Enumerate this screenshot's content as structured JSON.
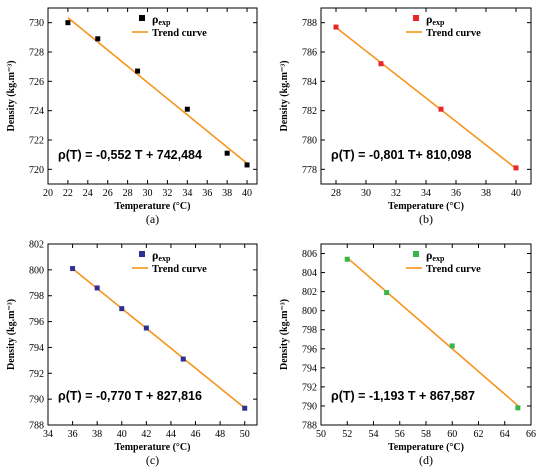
{
  "chart_data": [
    {
      "type": "scatter",
      "panel_label": "(a)",
      "xlabel": "Temperature (°C)",
      "ylabel": "Density (kg.m⁻³)",
      "xlim": [
        20,
        41
      ],
      "ylim": [
        719,
        731
      ],
      "xticks": [
        20,
        22,
        24,
        26,
        28,
        30,
        32,
        34,
        36,
        38,
        40
      ],
      "yticks": [
        720,
        722,
        724,
        726,
        728,
        730
      ],
      "marker_color": "#000000",
      "trend_color": "#f7941d",
      "series": [
        {
          "name": "ρexp",
          "x": [
            22,
            25,
            29,
            34,
            38,
            40
          ],
          "y": [
            730.0,
            728.9,
            726.7,
            724.1,
            721.1,
            720.3
          ]
        }
      ],
      "trend": {
        "name": "Trend curve",
        "slope": -0.552,
        "intercept": 742.484,
        "x_range": [
          22,
          40
        ]
      },
      "equation": "ρ(T) = -0,552 T + 742,484",
      "legend": "top-right"
    },
    {
      "type": "scatter",
      "panel_label": "(b)",
      "xlabel": "Temperature (°C)",
      "ylabel": "Density (kg.m⁻³)",
      "xlim": [
        27,
        41
      ],
      "ylim": [
        777,
        789
      ],
      "xticks": [
        28,
        30,
        32,
        34,
        36,
        38,
        40
      ],
      "yticks": [
        778,
        780,
        782,
        784,
        786,
        788
      ],
      "marker_color": "#e8262b",
      "trend_color": "#f7941d",
      "series": [
        {
          "name": "ρexp",
          "x": [
            28,
            31,
            35,
            40
          ],
          "y": [
            787.7,
            785.2,
            782.1,
            778.1
          ]
        }
      ],
      "trend": {
        "name": "Trend curve",
        "slope": -0.801,
        "intercept": 810.098,
        "x_range": [
          28,
          40
        ]
      },
      "equation": "ρ(T) = -0,801 T+ 810,098",
      "legend": "top-right"
    },
    {
      "type": "scatter",
      "panel_label": "(c)",
      "xlabel": "Temperature (°C)",
      "ylabel": "Density (kg.m⁻³)",
      "xlim": [
        34,
        51
      ],
      "ylim": [
        788,
        802
      ],
      "xticks": [
        34,
        36,
        38,
        40,
        42,
        44,
        46,
        48,
        50
      ],
      "yticks": [
        788,
        790,
        792,
        794,
        796,
        798,
        800,
        802
      ],
      "marker_color": "#2e3192",
      "trend_color": "#f7941d",
      "series": [
        {
          "name": "ρexp",
          "x": [
            36,
            38,
            40,
            42,
            45,
            50
          ],
          "y": [
            800.1,
            798.6,
            797.0,
            795.5,
            793.1,
            789.3
          ]
        }
      ],
      "trend": {
        "name": "Trend curve",
        "slope": -0.77,
        "intercept": 827.816,
        "x_range": [
          36,
          50
        ]
      },
      "equation": "ρ(T) = -0,770 T +  827,816",
      "legend": "top-right"
    },
    {
      "type": "scatter",
      "panel_label": "(d)",
      "xlabel": "Temperature (°C)",
      "ylabel": "Density (kg.m⁻³)",
      "xlim": [
        50,
        66
      ],
      "ylim": [
        788,
        807
      ],
      "xticks": [
        50,
        52,
        54,
        56,
        58,
        60,
        62,
        64,
        66
      ],
      "yticks": [
        788,
        790,
        792,
        794,
        796,
        798,
        800,
        802,
        804,
        806
      ],
      "marker_color": "#39b54a",
      "trend_color": "#f7941d",
      "series": [
        {
          "name": "ρexp",
          "x": [
            52,
            55,
            60,
            65
          ],
          "y": [
            805.4,
            801.9,
            796.3,
            789.8
          ]
        }
      ],
      "trend": {
        "name": "Trend curve",
        "slope": -1.193,
        "intercept": 867.587,
        "x_range": [
          52,
          65
        ]
      },
      "equation": "ρ(T) =  -1,193 T + 867,587",
      "legend": "top-right"
    }
  ]
}
